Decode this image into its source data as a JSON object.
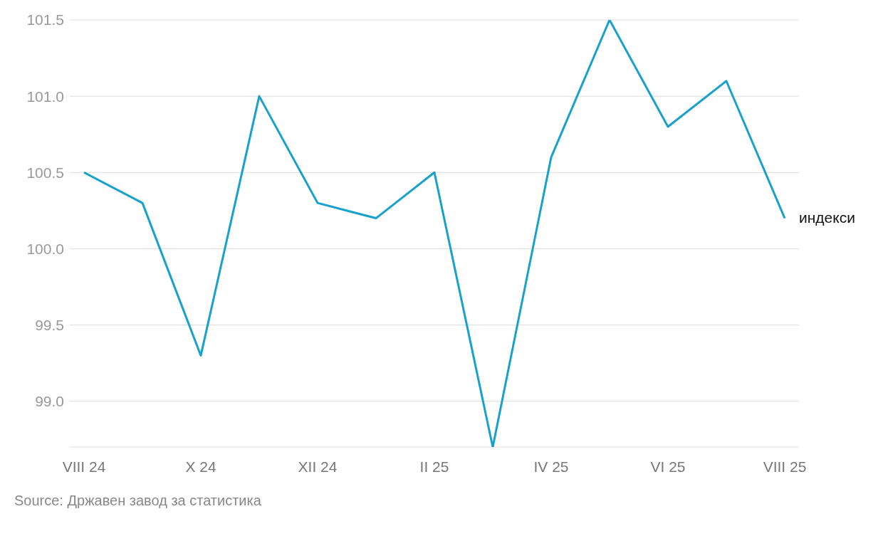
{
  "chart_data": {
    "type": "line",
    "categories": [
      "VIII 24",
      null,
      "X 24",
      null,
      "XII 24",
      null,
      "II 25",
      null,
      "IV 25",
      null,
      "VI 25",
      null,
      "VIII 25"
    ],
    "series": [
      {
        "name": "индекси",
        "color": "#18a1cd",
        "values": [
          100.5,
          100.3,
          99.3,
          101.0,
          100.3,
          100.2,
          100.5,
          98.7,
          100.6,
          101.5,
          100.8,
          101.1,
          100.2
        ]
      }
    ],
    "ylim": [
      98.7,
      101.5
    ],
    "yticks": [
      {
        "value": 99,
        "label": "99.0"
      },
      {
        "value": 99.5,
        "label": "99.5"
      },
      {
        "value": 100,
        "label": "100.0"
      },
      {
        "value": 100.5,
        "label": "100.5"
      },
      {
        "value": 101,
        "label": "101.0"
      },
      {
        "value": 101.5,
        "label": "101.5"
      }
    ],
    "grid": "y",
    "marker": "none",
    "line_style": "solid",
    "annotations": [
      "Source: Државен завод за статистика"
    ]
  }
}
